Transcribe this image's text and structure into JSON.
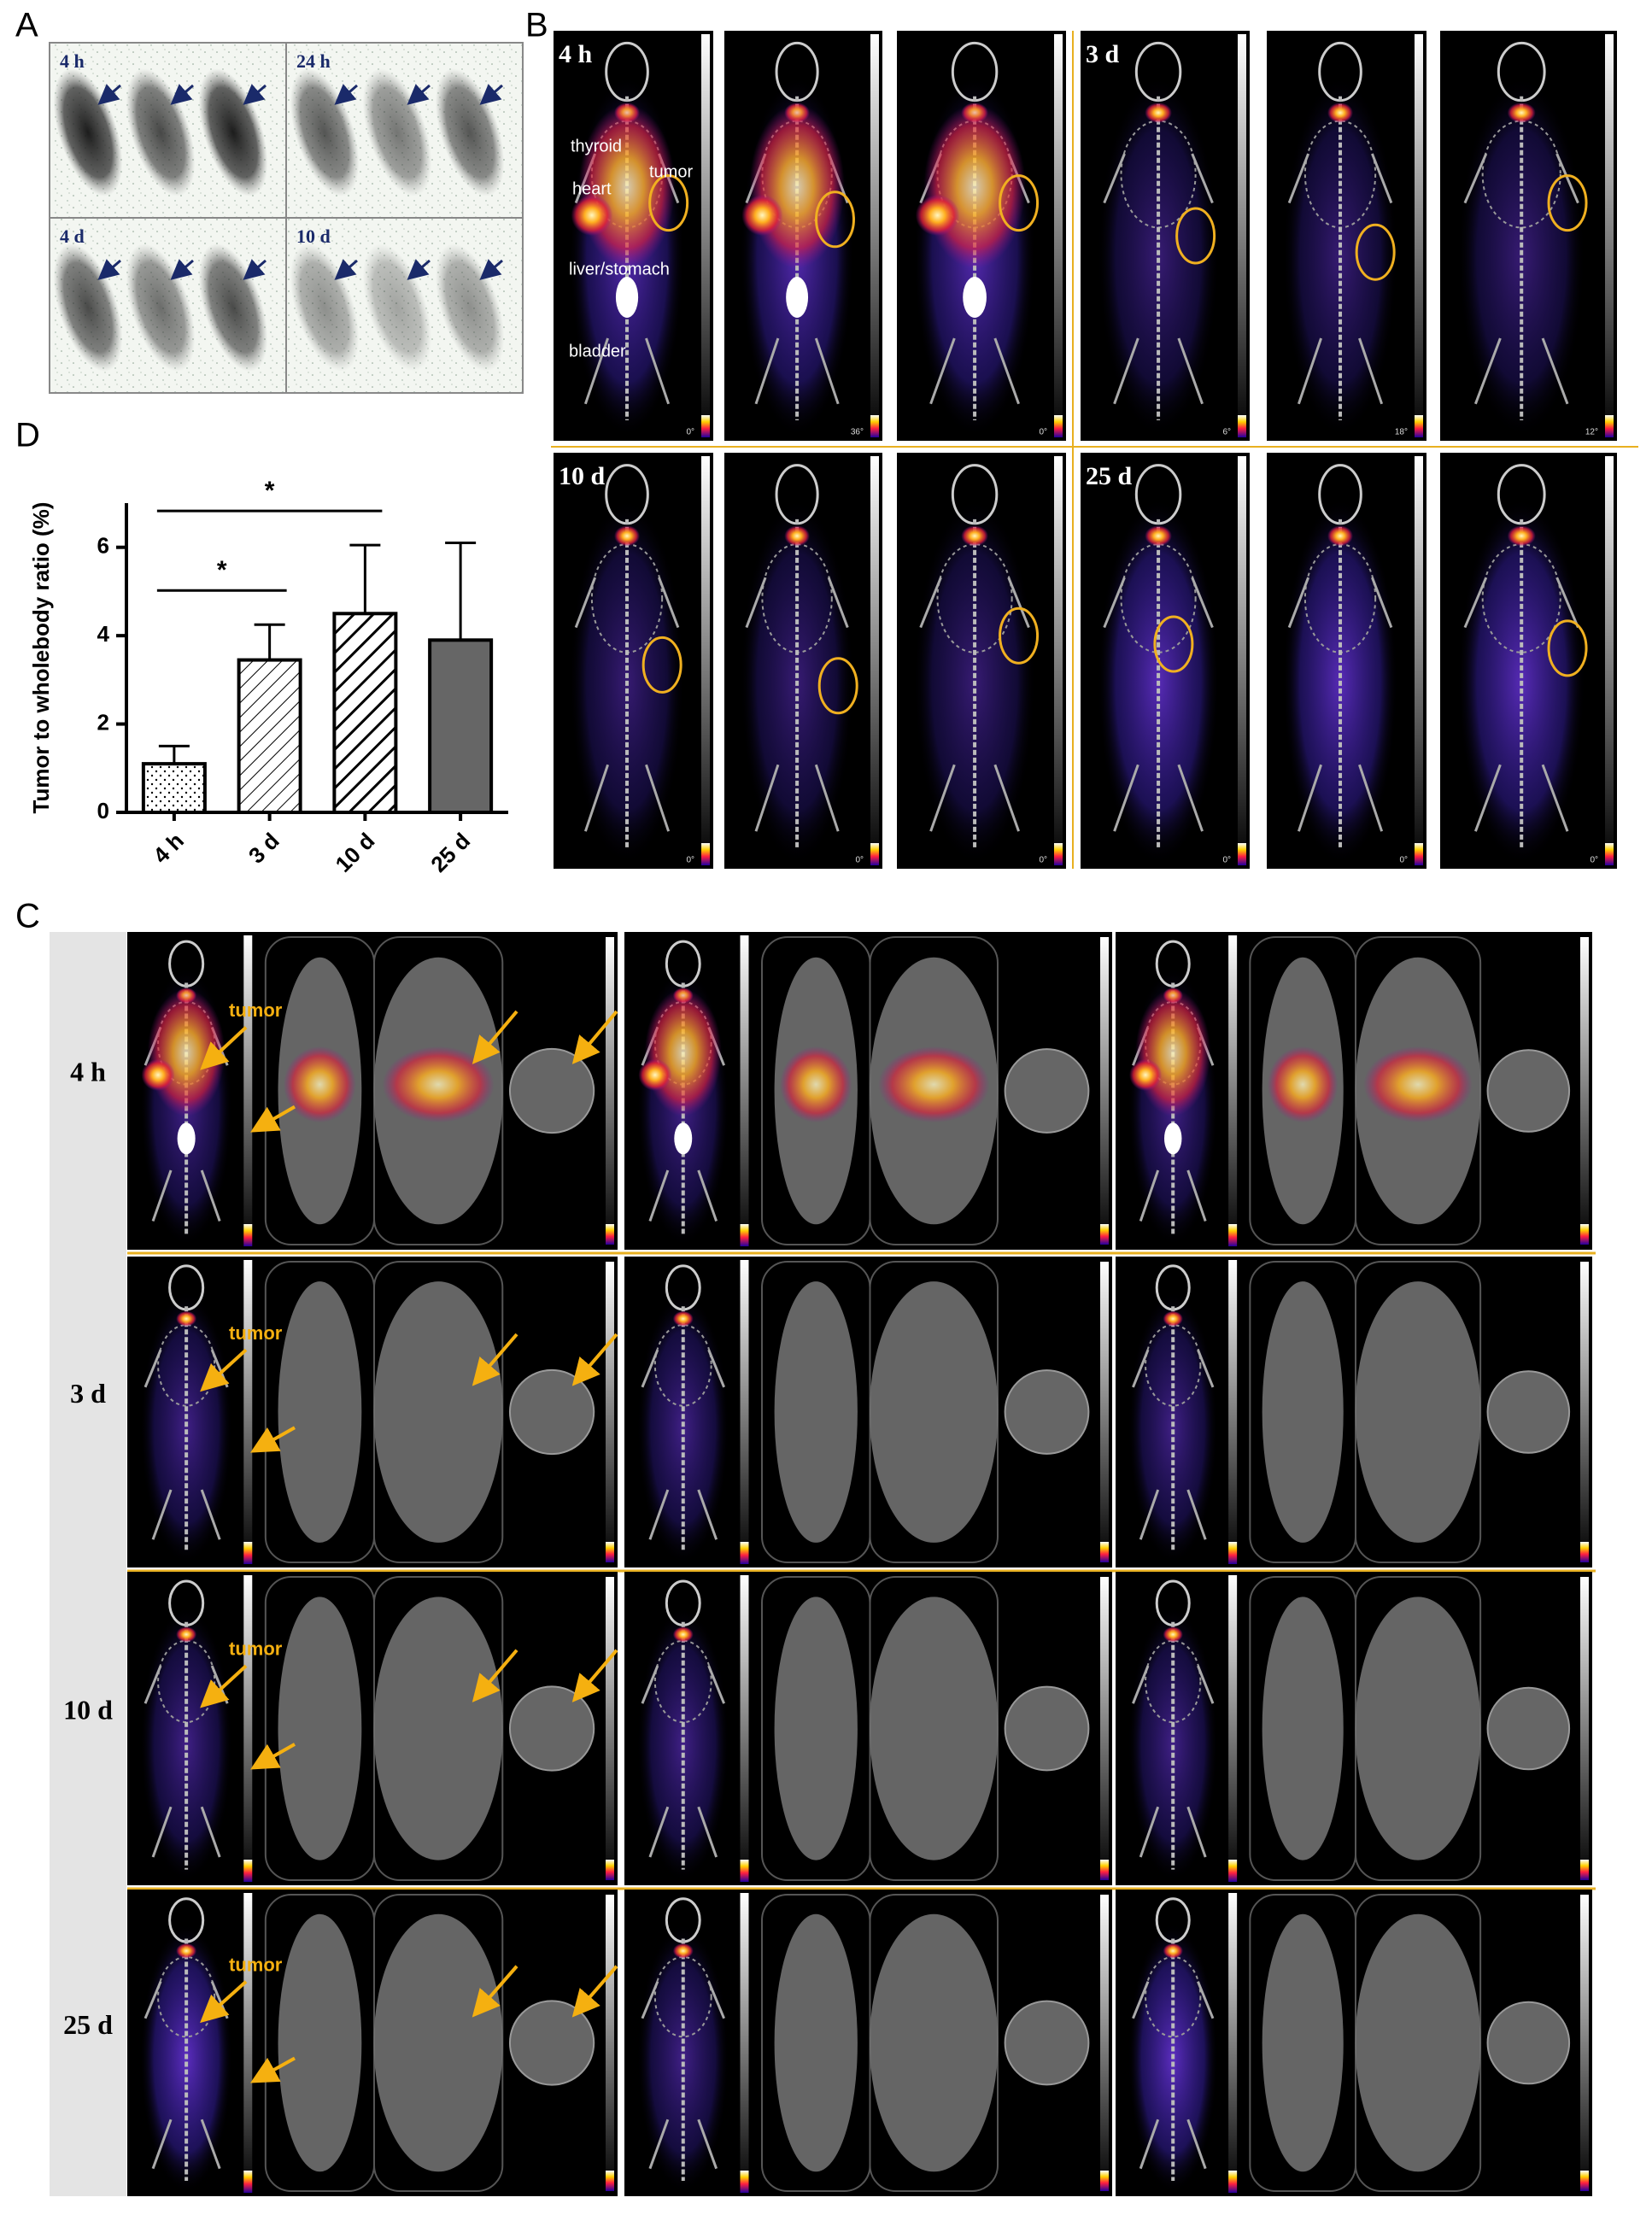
{
  "panels": {
    "A": {
      "label": "A",
      "timepoints": [
        "4 h",
        "24 h",
        "4 d",
        "10 d"
      ]
    },
    "B": {
      "label": "B",
      "timepoints": [
        "4 h",
        "3 d",
        "10 d",
        "25 d"
      ],
      "organs": [
        "thyroid",
        "heart",
        "tumor",
        "liver/stomach",
        "bladder"
      ],
      "angles": [
        [
          "0°",
          "36°",
          "0°",
          "6°",
          "18°",
          "12°"
        ],
        [
          "0°",
          "0°",
          "0°",
          "0°",
          "0°",
          "0°"
        ]
      ]
    },
    "C": {
      "label": "C",
      "timepoints": [
        "4 h",
        "3 d",
        "10 d",
        "25 d"
      ],
      "annotation": "tumor"
    }
  },
  "chart_data": {
    "type": "bar",
    "label": "D",
    "y_label": "Tumor to wholebody ratio (%)",
    "categories": [
      "4 h",
      "3 d",
      "10 d",
      "25 d"
    ],
    "values": [
      1.1,
      3.45,
      4.5,
      3.9
    ],
    "errors": [
      0.4,
      0.8,
      1.55,
      2.2
    ],
    "ylim": [
      0,
      7
    ],
    "yticks": [
      0,
      2,
      4,
      6
    ],
    "significance": [
      {
        "pair": [
          "4 h",
          "3 d"
        ],
        "label": "*"
      },
      {
        "pair": [
          "4 h",
          "10 d"
        ],
        "label": "*"
      }
    ]
  }
}
